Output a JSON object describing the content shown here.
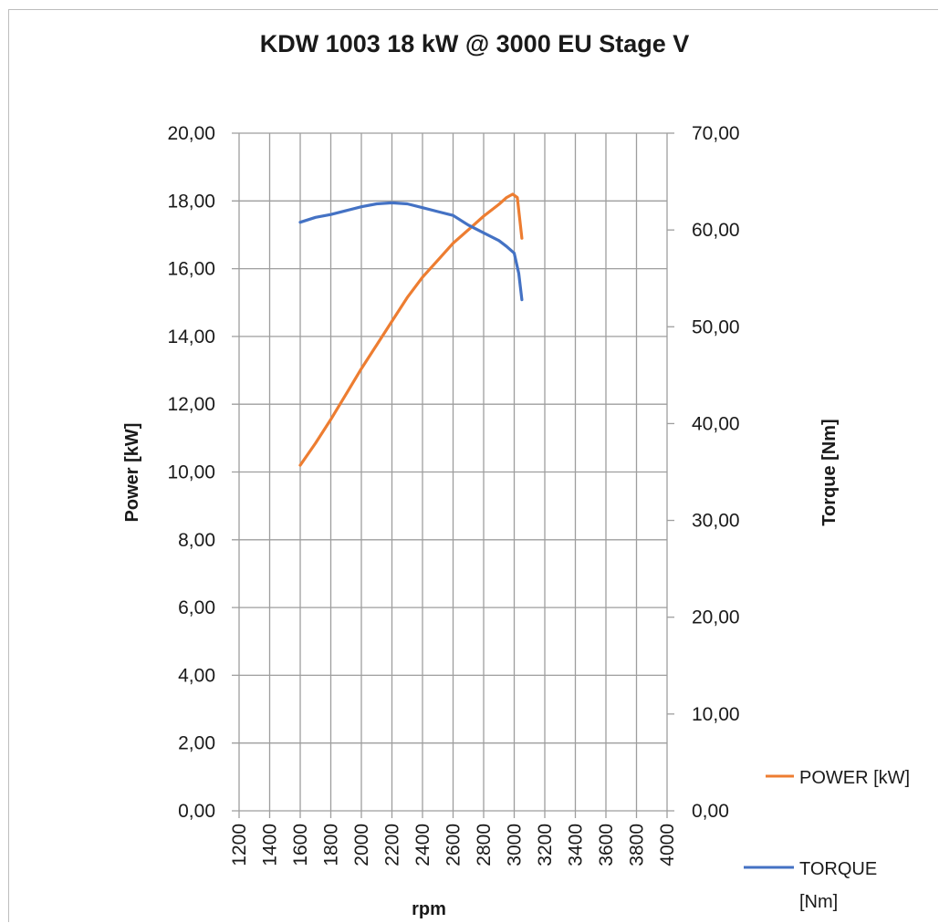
{
  "chart_data": {
    "type": "line",
    "title": "KDW 1003 18 kW @ 3000 EU Stage V",
    "xlabel": "rpm",
    "ylabel_left": "Power [kW]",
    "ylabel_right": "Torque [Nm]",
    "x_ticks": [
      "1200",
      "1400",
      "1600",
      "1800",
      "2000",
      "2200",
      "2400",
      "2600",
      "2800",
      "3000",
      "3200",
      "3400",
      "3600",
      "3800",
      "4000"
    ],
    "xlim": [
      1200,
      4000
    ],
    "y_left_ticks": [
      "0,00",
      "2,00",
      "4,00",
      "6,00",
      "8,00",
      "10,00",
      "12,00",
      "14,00",
      "16,00",
      "18,00",
      "20,00"
    ],
    "ylim_left": [
      0,
      20
    ],
    "y_right_ticks": [
      "0,00",
      "10,00",
      "20,00",
      "30,00",
      "40,00",
      "50,00",
      "60,00",
      "70,00"
    ],
    "ylim_right": [
      0,
      70
    ],
    "grid": true,
    "legend_position": "bottom-right",
    "series": [
      {
        "name": "POWER [kW]",
        "axis": "left",
        "color": "#ed7d31",
        "x": [
          1600,
          1700,
          1800,
          1900,
          2000,
          2100,
          2200,
          2300,
          2400,
          2500,
          2600,
          2700,
          2800,
          2900,
          2950,
          2990,
          3020,
          3050
        ],
        "y": [
          10.2,
          10.85,
          11.55,
          12.3,
          13.05,
          13.75,
          14.45,
          15.15,
          15.75,
          16.25,
          16.75,
          17.15,
          17.55,
          17.9,
          18.1,
          18.2,
          18.1,
          16.9
        ]
      },
      {
        "name": "TORQUE [Nm]",
        "axis": "right",
        "color": "#4472c4",
        "x": [
          1600,
          1700,
          1800,
          1900,
          2000,
          2100,
          2200,
          2300,
          2400,
          2500,
          2600,
          2700,
          2800,
          2900,
          2950,
          3000,
          3030,
          3050
        ],
        "y": [
          60.8,
          61.3,
          61.6,
          62.0,
          62.4,
          62.7,
          62.8,
          62.7,
          62.3,
          61.9,
          61.5,
          60.5,
          59.7,
          58.9,
          58.3,
          57.6,
          55.5,
          52.8
        ]
      }
    ]
  },
  "legend": {
    "power_line1": "POWER [kW]",
    "torque_line1": "TORQUE",
    "torque_line2": "[Nm]"
  }
}
